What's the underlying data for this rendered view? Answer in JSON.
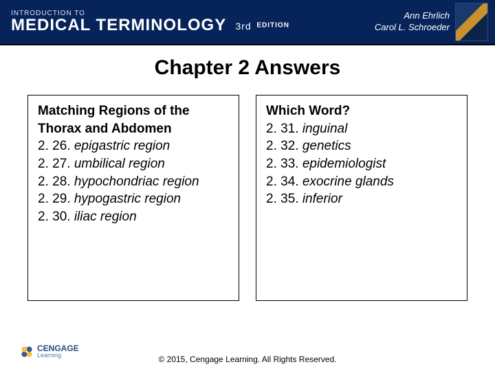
{
  "header": {
    "intro": "INTRODUCTION TO",
    "title": "MEDICAL TERMINOLOGY",
    "edition_num": "3rd",
    "edition_word": "EDITION",
    "author1": "Ann Ehrlich",
    "author2": "Carol L. Schroeder"
  },
  "slide_title": "Chapter 2 Answers",
  "left_box": {
    "heading_l1": "Matching Regions of the",
    "heading_l2": "Thorax and Abdomen",
    "items": [
      {
        "num": "2. 26.",
        "term": "epigastric region"
      },
      {
        "num": "2. 27.",
        "term": "umbilical region"
      },
      {
        "num": "2. 28.",
        "term": "hypochondriac region"
      },
      {
        "num": "2. 29.",
        "term": "hypogastric region"
      },
      {
        "num": "2. 30.",
        "term": "iliac region"
      }
    ]
  },
  "right_box": {
    "heading": "Which Word?",
    "items": [
      {
        "num": "2. 31.",
        "term": "inguinal"
      },
      {
        "num": "2. 32.",
        "term": "genetics"
      },
      {
        "num": "2. 33.",
        "term": "epidemiologist"
      },
      {
        "num": "2. 34.",
        "term": "exocrine glands"
      },
      {
        "num": "2. 35.",
        "term": "inferior"
      }
    ]
  },
  "footer": {
    "copyright": "© 2015, Cengage Learning. All Rights Reserved.",
    "logo_brand": "CENGAGE",
    "logo_sub": "Learning"
  },
  "colors": {
    "header_bg": "#06245a",
    "text": "#000000",
    "box_border": "#000000"
  }
}
